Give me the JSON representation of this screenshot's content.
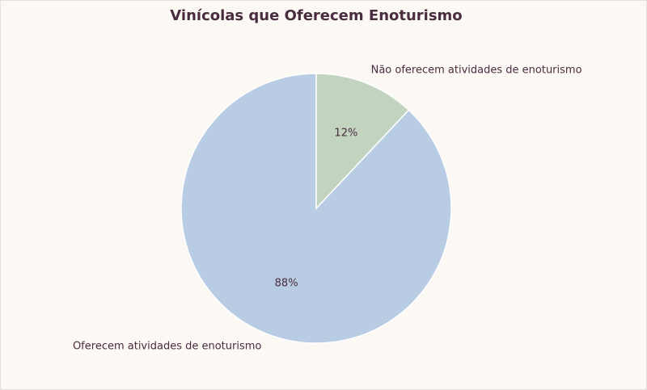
{
  "chart_data": {
    "type": "pie",
    "title": "Vinícolas que Oferecem Enoturismo",
    "categories": [
      "Oferecem atividades de enoturismo",
      "Não oferecem atividades de enoturismo"
    ],
    "values": [
      88,
      12
    ],
    "value_labels": [
      "88%",
      "12%"
    ],
    "colors": [
      "#b8cce4",
      "#c2d4c0"
    ]
  }
}
